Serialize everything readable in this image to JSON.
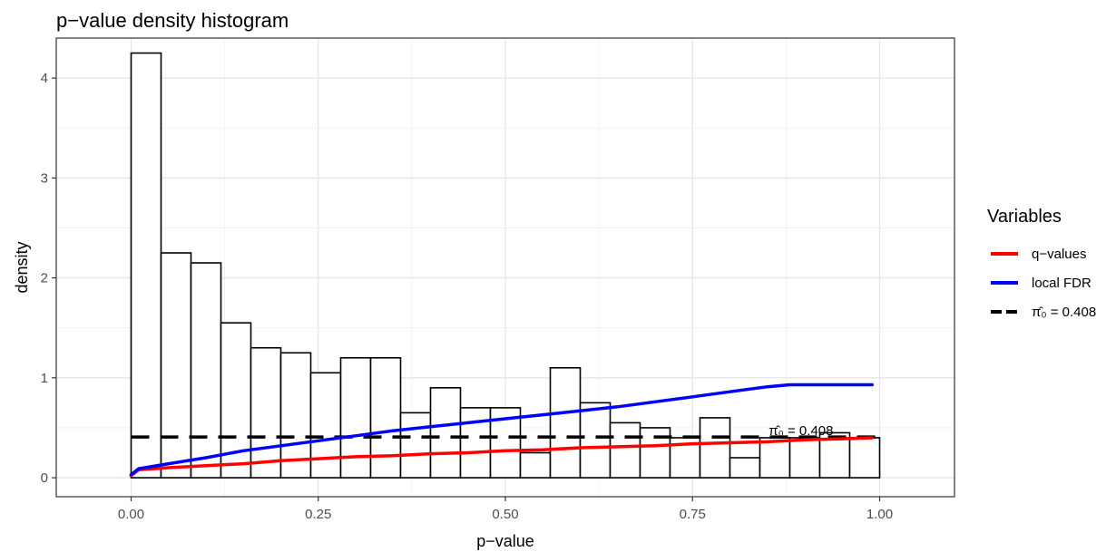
{
  "chart_data": {
    "type": "bar",
    "title": "p−value density histogram",
    "xlabel": "p−value",
    "ylabel": "density",
    "xlim": [
      -0.1,
      1.1
    ],
    "ylim": [
      -0.19,
      4.4
    ],
    "x_ticks": [
      0,
      0.25,
      0.5,
      0.75,
      1.0
    ],
    "x_tick_labels": [
      "0.00",
      "0.25",
      "0.50",
      "0.75",
      "1.00"
    ],
    "y_ticks": [
      0,
      1,
      2,
      3,
      4
    ],
    "y_tick_labels": [
      "0",
      "1",
      "2",
      "3",
      "4"
    ],
    "grid": true,
    "bin_width": 0.04,
    "bin_starts": [
      0.0,
      0.04,
      0.08,
      0.12,
      0.16,
      0.2,
      0.24,
      0.28,
      0.32,
      0.36,
      0.4,
      0.44,
      0.48,
      0.52,
      0.56,
      0.6,
      0.64,
      0.68,
      0.72,
      0.76,
      0.8,
      0.84,
      0.88,
      0.92,
      0.96
    ],
    "density": [
      4.25,
      2.25,
      2.15,
      1.55,
      1.3,
      1.25,
      1.05,
      1.2,
      1.2,
      0.65,
      0.9,
      0.7,
      0.7,
      0.25,
      1.1,
      0.75,
      0.55,
      0.5,
      0.4,
      0.6,
      0.2,
      0.4,
      0.4,
      0.45,
      0.4
    ],
    "pi0_line": {
      "y": 0.408,
      "x_range": [
        0.0,
        1.0
      ],
      "style": "dashed",
      "color": "#000000"
    },
    "series": [
      {
        "name": "q−values",
        "color": "#ff0000",
        "x": [
          0.0,
          0.01,
          0.05,
          0.1,
          0.15,
          0.2,
          0.25,
          0.3,
          0.35,
          0.4,
          0.45,
          0.5,
          0.55,
          0.6,
          0.65,
          0.7,
          0.75,
          0.8,
          0.85,
          0.9,
          0.95,
          0.99
        ],
        "values": [
          0.02,
          0.08,
          0.1,
          0.12,
          0.14,
          0.17,
          0.19,
          0.21,
          0.22,
          0.24,
          0.25,
          0.27,
          0.28,
          0.3,
          0.31,
          0.32,
          0.34,
          0.35,
          0.36,
          0.38,
          0.39,
          0.4
        ]
      },
      {
        "name": "local FDR",
        "color": "#0000ff",
        "x": [
          0.0,
          0.01,
          0.05,
          0.1,
          0.15,
          0.2,
          0.25,
          0.3,
          0.35,
          0.4,
          0.45,
          0.5,
          0.55,
          0.6,
          0.65,
          0.7,
          0.75,
          0.8,
          0.85,
          0.88,
          0.95,
          0.99
        ],
        "values": [
          0.03,
          0.09,
          0.14,
          0.2,
          0.27,
          0.32,
          0.37,
          0.42,
          0.47,
          0.51,
          0.55,
          0.59,
          0.63,
          0.67,
          0.71,
          0.76,
          0.81,
          0.86,
          0.91,
          0.93,
          0.93,
          0.93
        ]
      }
    ],
    "annotation": {
      "text": "π̂₀ = 0.408",
      "x": 0.895,
      "y": 0.408
    },
    "legend": {
      "title": "Variables",
      "position": "right",
      "items": [
        {
          "label": "q−values",
          "color": "#ff0000",
          "style": "solid"
        },
        {
          "label": "local FDR",
          "color": "#0000ff",
          "style": "solid"
        },
        {
          "label": "π̂₀ = 0.408",
          "color": "#000000",
          "style": "dashed"
        }
      ]
    }
  }
}
